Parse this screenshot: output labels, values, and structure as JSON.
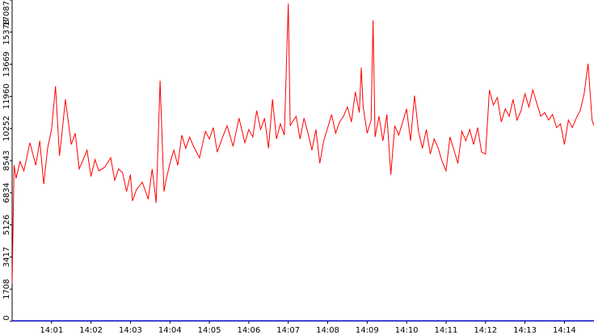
{
  "chart_data": {
    "type": "line",
    "title": "",
    "xlabel": "",
    "ylabel": "",
    "colors": {
      "line": "#ff0000",
      "plot_background": "#ffffff",
      "axis_frame": "#000000",
      "axis_baseline": "#0000cc"
    },
    "ylim": [
      0,
      17087
    ],
    "y_ticks": [
      "0",
      "1708",
      "3417",
      "5126",
      "6834",
      "8543",
      "10252",
      "11960",
      "13669",
      "15378",
      "17087"
    ],
    "x_tick_labels": [
      "14:01",
      "14:02",
      "14:03",
      "14:04",
      "14:05",
      "14:06",
      "14:07",
      "14:08",
      "14:09",
      "14:10",
      "14:11",
      "14:12",
      "14:13",
      "14:14"
    ],
    "x_range_minutes": [
      0.0,
      14.75
    ],
    "x_tick_positions_minutes": [
      1,
      2,
      3,
      4,
      5,
      6,
      7,
      8,
      9,
      10,
      11,
      12,
      13,
      14
    ],
    "grid": false,
    "legend": "none",
    "series": [
      {
        "x_minutes": [
          0.0,
          0.05,
          0.1,
          0.2,
          0.3,
          0.45,
          0.6,
          0.7,
          0.8,
          0.9,
          1.0,
          1.1,
          1.2,
          1.25,
          1.35,
          1.5,
          1.6,
          1.7,
          1.8,
          1.9,
          2.0,
          2.1,
          2.2,
          2.35,
          2.5,
          2.6,
          2.7,
          2.8,
          2.9,
          3.0,
          3.05,
          3.15,
          3.3,
          3.45,
          3.55,
          3.65,
          3.75,
          3.85,
          3.9,
          4.0,
          4.1,
          4.2,
          4.3,
          4.4,
          4.5,
          4.6,
          4.75,
          4.9,
          5.0,
          5.1,
          5.2,
          5.3,
          5.45,
          5.6,
          5.75,
          5.9,
          6.0,
          6.1,
          6.2,
          6.3,
          6.4,
          6.5,
          6.6,
          6.7,
          6.8,
          6.9,
          7.0,
          7.05,
          7.1,
          7.2,
          7.3,
          7.4,
          7.5,
          7.6,
          7.7,
          7.8,
          7.9,
          8.0,
          8.1,
          8.2,
          8.3,
          8.4,
          8.5,
          8.6,
          8.7,
          8.8,
          8.85,
          8.9,
          9.0,
          9.1,
          9.15,
          9.2,
          9.3,
          9.4,
          9.5,
          9.6,
          9.7,
          9.8,
          9.9,
          10.0,
          10.1,
          10.2,
          10.3,
          10.4,
          10.5,
          10.6,
          10.7,
          10.8,
          10.9,
          11.0,
          11.1,
          11.2,
          11.3,
          11.4,
          11.5,
          11.6,
          11.7,
          11.8,
          11.9,
          12.0,
          12.1,
          12.2,
          12.3,
          12.4,
          12.5,
          12.6,
          12.7,
          12.8,
          12.9,
          13.0,
          13.1,
          13.2,
          13.3,
          13.4,
          13.5,
          13.6,
          13.7,
          13.8,
          13.9,
          14.0,
          14.1,
          14.2,
          14.3,
          14.4,
          14.5,
          14.6,
          14.7,
          14.75
        ],
        "y": [
          2000,
          8300,
          7600,
          8500,
          8000,
          9500,
          8300,
          9600,
          7300,
          9200,
          10200,
          12500,
          8800,
          9700,
          11800,
          9400,
          10000,
          8100,
          8600,
          9100,
          7700,
          8600,
          8000,
          8200,
          8700,
          7500,
          8100,
          7900,
          6900,
          7800,
          6400,
          7000,
          7400,
          6500,
          8100,
          6300,
          12800,
          6900,
          7500,
          8400,
          9100,
          8300,
          9900,
          9200,
          9800,
          9300,
          8700,
          10100,
          9700,
          10300,
          9000,
          9600,
          10400,
          9300,
          10800,
          9500,
          10200,
          9800,
          11200,
          10200,
          10800,
          9200,
          11800,
          9700,
          10500,
          9900,
          16900,
          10400,
          10600,
          10900,
          9700,
          10800,
          10000,
          9100,
          10200,
          8400,
          9600,
          10300,
          11000,
          10000,
          10600,
          10900,
          11400,
          10600,
          12200,
          11100,
          13500,
          11400,
          10000,
          10700,
          16000,
          9800,
          10900,
          9600,
          11000,
          7800,
          10400,
          9900,
          10600,
          11300,
          9600,
          12000,
          10100,
          9200,
          10200,
          8900,
          9700,
          9200,
          8500,
          8000,
          9800,
          9100,
          8400,
          10100,
          9600,
          10200,
          9400,
          10300,
          9000,
          8900,
          12300,
          11500,
          11900,
          10600,
          11300,
          10900,
          11800,
          10700,
          11200,
          12100,
          11400,
          12300,
          11600,
          10900,
          11100,
          10700,
          11000,
          10300,
          10500,
          9400,
          10700,
          10300,
          10800,
          11200,
          12100,
          13700,
          10700,
          10400
        ]
      }
    ]
  }
}
